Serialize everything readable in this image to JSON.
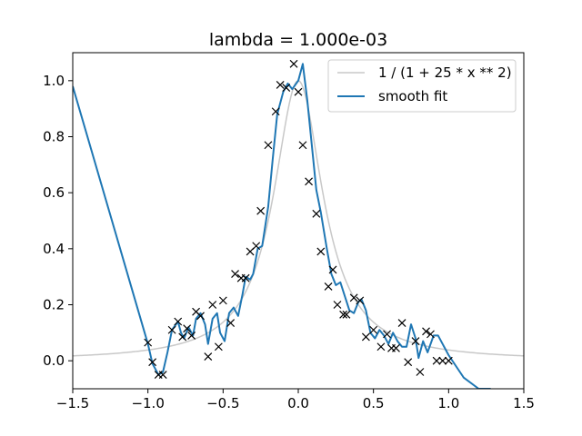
{
  "chart_data": {
    "type": "line",
    "title": "lambda = 1.000e-03",
    "xlabel": "",
    "ylabel": "",
    "xlim": [
      -1.5,
      1.5
    ],
    "ylim": [
      -0.1,
      1.1
    ],
    "xticks": [
      -1.5,
      -1.0,
      -0.5,
      0.0,
      0.5,
      1.0,
      1.5
    ],
    "xtick_labels": [
      "−1.5",
      "−1.0",
      "−0.5",
      "0.0",
      "0.5",
      "1.0",
      "1.5"
    ],
    "yticks": [
      0.0,
      0.2,
      0.4,
      0.6,
      0.8,
      1.0
    ],
    "ytick_labels": [
      "0.0",
      "0.2",
      "0.4",
      "0.6",
      "0.8",
      "1.0"
    ],
    "grid": false,
    "legend": {
      "position": "top-right",
      "entries": [
        {
          "label": "1 / (1 + 25 * x ** 2)",
          "color": "#c8c8c8"
        },
        {
          "label": "smooth fit",
          "color": "#1f77b4"
        }
      ]
    },
    "series": [
      {
        "name": "1 / (1 + 25 * x ** 2)",
        "kind": "function",
        "color": "#c8c8c8"
      },
      {
        "name": "smooth fit",
        "kind": "line",
        "color": "#1f77b4",
        "x": [
          -1.5,
          -1.0,
          -0.97,
          -0.93,
          -0.9,
          -0.87,
          -0.84,
          -0.8,
          -0.78,
          -0.76,
          -0.73,
          -0.7,
          -0.68,
          -0.65,
          -0.62,
          -0.6,
          -0.57,
          -0.54,
          -0.52,
          -0.49,
          -0.46,
          -0.43,
          -0.4,
          -0.37,
          -0.35,
          -0.32,
          -0.3,
          -0.27,
          -0.24,
          -0.2,
          -0.17,
          -0.14,
          -0.1,
          -0.07,
          -0.04,
          0.0,
          0.03,
          0.06,
          0.09,
          0.12,
          0.15,
          0.19,
          0.22,
          0.25,
          0.28,
          0.31,
          0.34,
          0.37,
          0.4,
          0.42,
          0.45,
          0.48,
          0.51,
          0.54,
          0.57,
          0.6,
          0.63,
          0.66,
          0.69,
          0.72,
          0.75,
          0.78,
          0.8,
          0.83,
          0.86,
          0.9,
          0.93,
          0.96,
          1.0,
          1.1,
          1.2,
          1.28
        ],
        "y": [
          0.98,
          0.06,
          -0.01,
          -0.05,
          -0.04,
          0.03,
          0.11,
          0.14,
          0.1,
          0.08,
          0.12,
          0.09,
          0.15,
          0.17,
          0.13,
          0.06,
          0.15,
          0.17,
          0.1,
          0.07,
          0.17,
          0.19,
          0.16,
          0.24,
          0.3,
          0.29,
          0.31,
          0.4,
          0.41,
          0.55,
          0.72,
          0.88,
          0.96,
          0.99,
          0.97,
          1.0,
          1.06,
          0.93,
          0.77,
          0.61,
          0.53,
          0.4,
          0.31,
          0.27,
          0.28,
          0.23,
          0.18,
          0.17,
          0.21,
          0.22,
          0.18,
          0.1,
          0.08,
          0.11,
          0.09,
          0.06,
          0.1,
          0.07,
          0.05,
          0.05,
          0.13,
          0.08,
          0.01,
          0.07,
          0.03,
          0.09,
          0.09,
          0.06,
          0.02,
          -0.06,
          -0.1,
          -0.1
        ]
      },
      {
        "name": "",
        "kind": "scatter",
        "marker": "x",
        "color": "#000000",
        "x": [
          -1.0,
          -0.97,
          -0.93,
          -0.9,
          -0.84,
          -0.8,
          -0.77,
          -0.74,
          -0.71,
          -0.68,
          -0.65,
          -0.6,
          -0.57,
          -0.53,
          -0.5,
          -0.45,
          -0.42,
          -0.38,
          -0.35,
          -0.32,
          -0.28,
          -0.25,
          -0.2,
          -0.15,
          -0.12,
          -0.08,
          -0.03,
          0.0,
          0.03,
          0.07,
          0.12,
          0.15,
          0.2,
          0.23,
          0.26,
          0.3,
          0.32,
          0.37,
          0.41,
          0.45,
          0.5,
          0.55,
          0.59,
          0.62,
          0.65,
          0.69,
          0.73,
          0.78,
          0.81,
          0.85,
          0.88,
          0.92,
          0.96,
          1.0
        ],
        "y": [
          0.065,
          -0.005,
          -0.05,
          -0.05,
          0.11,
          0.14,
          0.085,
          0.115,
          0.09,
          0.175,
          0.16,
          0.015,
          0.2,
          0.05,
          0.215,
          0.135,
          0.31,
          0.295,
          0.295,
          0.39,
          0.41,
          0.535,
          0.77,
          0.89,
          0.985,
          0.975,
          1.06,
          0.96,
          0.77,
          0.64,
          0.525,
          0.39,
          0.265,
          0.325,
          0.2,
          0.165,
          0.165,
          0.225,
          0.215,
          0.085,
          0.11,
          0.05,
          0.095,
          0.045,
          0.045,
          0.135,
          -0.005,
          0.07,
          -0.04,
          0.105,
          0.095,
          0.0,
          0.0,
          0.0
        ]
      }
    ]
  }
}
